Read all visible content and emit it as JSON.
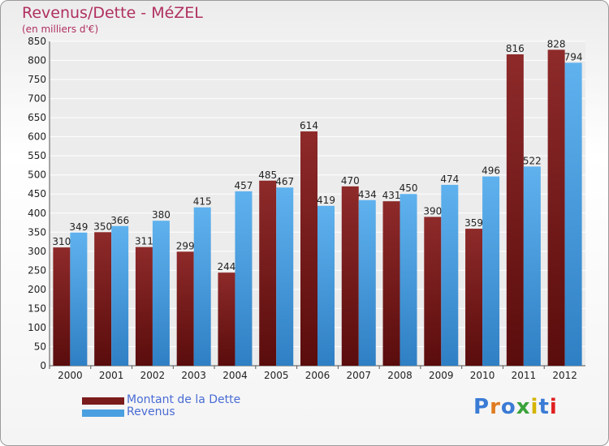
{
  "chart_data": {
    "type": "bar",
    "title": "Revenus/Dette - MéZEL",
    "subtitle": "(en milliers d'€)",
    "categories": [
      "2000",
      "2001",
      "2002",
      "2003",
      "2004",
      "2005",
      "2006",
      "2007",
      "2008",
      "2009",
      "2010",
      "2011",
      "2012"
    ],
    "series": [
      {
        "name": "Montant de la Dette",
        "color": "#7a1c1c",
        "values": [
          310,
          350,
          311,
          299,
          244,
          485,
          614,
          470,
          431,
          390,
          359,
          816,
          828
        ]
      },
      {
        "name": "Revenus",
        "color": "#4a9fe0",
        "values": [
          349,
          366,
          380,
          415,
          457,
          467,
          419,
          434,
          450,
          474,
          496,
          522,
          794
        ]
      }
    ],
    "ylim": [
      0,
      850
    ],
    "ytick_step": 50,
    "grid": true,
    "legend": "bottom-left"
  },
  "logo": {
    "text": "Proxiti",
    "colors": [
      "#3a7bd5",
      "#e07b20",
      "#3a7bd5",
      "#3aa33a",
      "#d4b400",
      "#3a7bd5",
      "#e02020"
    ]
  }
}
